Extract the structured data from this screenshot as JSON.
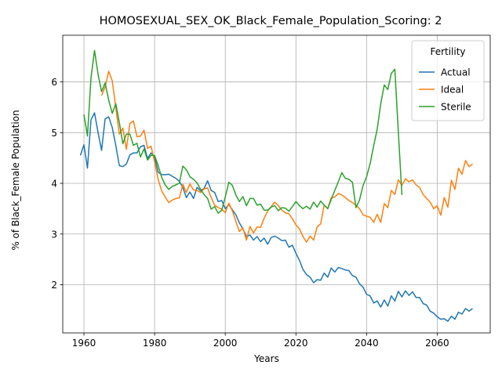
{
  "chart_data": {
    "type": "line",
    "title": "HOMOSEXUAL_SEX_OK_Black_Female_Population_Scoring: 2",
    "xlabel": "Years",
    "ylabel": "% of Black_Female Population",
    "xlim": [
      1954,
      2075
    ],
    "ylim": [
      1.05,
      6.92
    ],
    "xticks": [
      1960,
      1980,
      2000,
      2020,
      2040,
      2060
    ],
    "yticks": [
      2,
      3,
      4,
      5,
      6
    ],
    "grid": true,
    "legend": {
      "title": "Fertility",
      "placement": "top-right"
    },
    "series": [
      {
        "name": "Actual",
        "color": "#1f77b4",
        "points": [
          [
            1959,
            4.55
          ],
          [
            1960,
            4.76
          ],
          [
            1961,
            4.3
          ],
          [
            1962,
            5.25
          ],
          [
            1963,
            5.39
          ],
          [
            1964,
            5.0
          ],
          [
            1965,
            4.65
          ],
          [
            1966,
            5.27
          ],
          [
            1967,
            5.31
          ],
          [
            1968,
            5.1
          ],
          [
            1969,
            4.75
          ],
          [
            1970,
            4.35
          ],
          [
            1971,
            4.33
          ],
          [
            1972,
            4.38
          ],
          [
            1973,
            4.56
          ],
          [
            1974,
            4.6
          ],
          [
            1975,
            4.6
          ],
          [
            1976,
            4.72
          ],
          [
            1977,
            4.75
          ],
          [
            1978,
            4.49
          ],
          [
            1979,
            4.6
          ],
          [
            1980,
            4.52
          ],
          [
            1981,
            4.22
          ],
          [
            1982,
            4.17
          ],
          [
            1983,
            4.17
          ],
          [
            1984,
            4.18
          ],
          [
            1985,
            4.14
          ],
          [
            1986,
            4.1
          ],
          [
            1987,
            4.04
          ],
          [
            1988,
            3.92
          ],
          [
            1989,
            3.72
          ],
          [
            1990,
            3.83
          ],
          [
            1991,
            3.7
          ],
          [
            1992,
            3.92
          ],
          [
            1993,
            3.85
          ],
          [
            1994,
            3.9
          ],
          [
            1995,
            4.05
          ],
          [
            1996,
            3.86
          ],
          [
            1997,
            3.82
          ],
          [
            1998,
            3.64
          ],
          [
            1999,
            3.66
          ],
          [
            2000,
            3.5
          ],
          [
            2001,
            3.58
          ],
          [
            2002,
            3.48
          ],
          [
            2003,
            3.38
          ],
          [
            2004,
            3.22
          ],
          [
            2005,
            3.1
          ],
          [
            2006,
            2.95
          ],
          [
            2007,
            2.98
          ],
          [
            2008,
            2.88
          ],
          [
            2009,
            2.95
          ],
          [
            2010,
            2.85
          ],
          [
            2011,
            2.92
          ],
          [
            2012,
            2.8
          ],
          [
            2013,
            2.93
          ],
          [
            2014,
            2.96
          ],
          [
            2015,
            2.92
          ],
          [
            2016,
            2.87
          ],
          [
            2017,
            2.88
          ],
          [
            2018,
            2.74
          ],
          [
            2019,
            2.78
          ],
          [
            2020,
            2.62
          ],
          [
            2021,
            2.48
          ],
          [
            2022,
            2.3
          ],
          [
            2023,
            2.2
          ],
          [
            2024,
            2.15
          ],
          [
            2025,
            2.04
          ],
          [
            2026,
            2.1
          ],
          [
            2027,
            2.09
          ],
          [
            2028,
            2.23
          ],
          [
            2029,
            2.15
          ],
          [
            2030,
            2.33
          ],
          [
            2031,
            2.25
          ],
          [
            2032,
            2.34
          ],
          [
            2033,
            2.32
          ],
          [
            2034,
            2.29
          ],
          [
            2035,
            2.28
          ],
          [
            2036,
            2.18
          ],
          [
            2037,
            2.15
          ],
          [
            2038,
            2.02
          ],
          [
            2039,
            1.95
          ],
          [
            2040,
            1.81
          ],
          [
            2041,
            1.78
          ],
          [
            2042,
            1.64
          ],
          [
            2043,
            1.68
          ],
          [
            2044,
            1.56
          ],
          [
            2045,
            1.7
          ],
          [
            2046,
            1.58
          ],
          [
            2047,
            1.78
          ],
          [
            2048,
            1.68
          ],
          [
            2049,
            1.87
          ],
          [
            2050,
            1.76
          ],
          [
            2051,
            1.88
          ],
          [
            2052,
            1.79
          ],
          [
            2053,
            1.86
          ],
          [
            2054,
            1.75
          ],
          [
            2055,
            1.75
          ],
          [
            2056,
            1.63
          ],
          [
            2057,
            1.6
          ],
          [
            2058,
            1.48
          ],
          [
            2059,
            1.44
          ],
          [
            2060,
            1.37
          ],
          [
            2061,
            1.32
          ],
          [
            2062,
            1.33
          ],
          [
            2063,
            1.28
          ],
          [
            2064,
            1.38
          ],
          [
            2065,
            1.32
          ],
          [
            2066,
            1.46
          ],
          [
            2067,
            1.42
          ],
          [
            2068,
            1.53
          ],
          [
            2069,
            1.48
          ],
          [
            2070,
            1.53
          ]
        ]
      },
      {
        "name": "Ideal",
        "color": "#ff7f0e",
        "points": [
          [
            1965,
            5.73
          ],
          [
            1966,
            5.9
          ],
          [
            1967,
            6.21
          ],
          [
            1968,
            6.02
          ],
          [
            1969,
            5.5
          ],
          [
            1970,
            4.97
          ],
          [
            1971,
            5.09
          ],
          [
            1972,
            4.67
          ],
          [
            1973,
            5.18
          ],
          [
            1974,
            5.23
          ],
          [
            1975,
            4.92
          ],
          [
            1976,
            4.93
          ],
          [
            1977,
            5.05
          ],
          [
            1978,
            4.69
          ],
          [
            1979,
            4.73
          ],
          [
            1980,
            4.42
          ],
          [
            1981,
            4.08
          ],
          [
            1982,
            3.85
          ],
          [
            1983,
            3.73
          ],
          [
            1984,
            3.62
          ],
          [
            1985,
            3.67
          ],
          [
            1986,
            3.7
          ],
          [
            1987,
            3.71
          ],
          [
            1988,
            3.98
          ],
          [
            1989,
            3.82
          ],
          [
            1990,
            3.99
          ],
          [
            1991,
            3.87
          ],
          [
            1992,
            3.86
          ],
          [
            1993,
            3.82
          ],
          [
            1994,
            3.89
          ],
          [
            1995,
            3.91
          ],
          [
            1996,
            3.72
          ],
          [
            1997,
            3.57
          ],
          [
            1998,
            3.52
          ],
          [
            1999,
            3.49
          ],
          [
            2000,
            3.42
          ],
          [
            2001,
            3.61
          ],
          [
            2002,
            3.46
          ],
          [
            2003,
            3.25
          ],
          [
            2004,
            3.05
          ],
          [
            2005,
            3.12
          ],
          [
            2006,
            2.88
          ],
          [
            2007,
            3.15
          ],
          [
            2008,
            3.02
          ],
          [
            2009,
            3.14
          ],
          [
            2010,
            3.13
          ],
          [
            2011,
            3.31
          ],
          [
            2012,
            3.45
          ],
          [
            2013,
            3.54
          ],
          [
            2014,
            3.63
          ],
          [
            2015,
            3.56
          ],
          [
            2016,
            3.47
          ],
          [
            2017,
            3.42
          ],
          [
            2018,
            3.4
          ],
          [
            2019,
            3.3
          ],
          [
            2020,
            3.18
          ],
          [
            2021,
            3.1
          ],
          [
            2022,
            2.95
          ],
          [
            2023,
            2.84
          ],
          [
            2024,
            2.96
          ],
          [
            2025,
            2.88
          ],
          [
            2026,
            3.14
          ],
          [
            2027,
            3.2
          ],
          [
            2028,
            3.57
          ],
          [
            2029,
            3.5
          ],
          [
            2030,
            3.72
          ],
          [
            2031,
            3.73
          ],
          [
            2032,
            3.8
          ],
          [
            2033,
            3.77
          ],
          [
            2034,
            3.72
          ],
          [
            2035,
            3.66
          ],
          [
            2036,
            3.62
          ],
          [
            2037,
            3.57
          ],
          [
            2038,
            3.5
          ],
          [
            2039,
            3.38
          ],
          [
            2040,
            3.35
          ],
          [
            2041,
            3.33
          ],
          [
            2042,
            3.23
          ],
          [
            2043,
            3.39
          ],
          [
            2044,
            3.23
          ],
          [
            2045,
            3.6
          ],
          [
            2046,
            3.52
          ],
          [
            2047,
            3.86
          ],
          [
            2048,
            3.78
          ],
          [
            2049,
            4.07
          ],
          [
            2050,
            3.96
          ],
          [
            2051,
            4.09
          ],
          [
            2052,
            4.03
          ],
          [
            2053,
            4.07
          ],
          [
            2054,
            3.97
          ],
          [
            2055,
            3.92
          ],
          [
            2056,
            3.78
          ],
          [
            2057,
            3.7
          ],
          [
            2058,
            3.63
          ],
          [
            2059,
            3.5
          ],
          [
            2060,
            3.56
          ],
          [
            2061,
            3.37
          ],
          [
            2062,
            3.72
          ],
          [
            2063,
            3.53
          ],
          [
            2064,
            4.06
          ],
          [
            2065,
            3.88
          ],
          [
            2066,
            4.3
          ],
          [
            2067,
            4.18
          ],
          [
            2068,
            4.45
          ],
          [
            2069,
            4.33
          ],
          [
            2070,
            4.38
          ]
        ]
      },
      {
        "name": "Sterile",
        "color": "#2ca02c",
        "points": [
          [
            1960,
            5.36
          ],
          [
            1961,
            4.93
          ],
          [
            1962,
            6.08
          ],
          [
            1963,
            6.62
          ],
          [
            1964,
            6.15
          ],
          [
            1965,
            5.81
          ],
          [
            1966,
            5.98
          ],
          [
            1967,
            5.64
          ],
          [
            1968,
            5.38
          ],
          [
            1969,
            5.57
          ],
          [
            1970,
            5.2
          ],
          [
            1971,
            4.78
          ],
          [
            1972,
            4.97
          ],
          [
            1973,
            4.97
          ],
          [
            1974,
            4.75
          ],
          [
            1975,
            4.79
          ],
          [
            1976,
            4.52
          ],
          [
            1977,
            4.68
          ],
          [
            1978,
            4.46
          ],
          [
            1979,
            4.55
          ],
          [
            1980,
            4.55
          ],
          [
            1981,
            4.35
          ],
          [
            1982,
            4.12
          ],
          [
            1983,
            3.97
          ],
          [
            1984,
            3.88
          ],
          [
            1985,
            3.94
          ],
          [
            1986,
            3.97
          ],
          [
            1987,
            4.0
          ],
          [
            1988,
            4.34
          ],
          [
            1989,
            4.27
          ],
          [
            1990,
            4.13
          ],
          [
            1991,
            4.08
          ],
          [
            1992,
            4.01
          ],
          [
            1993,
            3.88
          ],
          [
            1994,
            3.78
          ],
          [
            1995,
            3.7
          ],
          [
            1996,
            3.49
          ],
          [
            1997,
            3.54
          ],
          [
            1998,
            3.41
          ],
          [
            1999,
            3.47
          ],
          [
            2000,
            3.73
          ],
          [
            2001,
            4.02
          ],
          [
            2002,
            3.96
          ],
          [
            2003,
            3.77
          ],
          [
            2004,
            3.64
          ],
          [
            2005,
            3.74
          ],
          [
            2006,
            3.56
          ],
          [
            2007,
            3.7
          ],
          [
            2008,
            3.7
          ],
          [
            2009,
            3.57
          ],
          [
            2010,
            3.59
          ],
          [
            2011,
            3.47
          ],
          [
            2012,
            3.47
          ],
          [
            2013,
            3.53
          ],
          [
            2014,
            3.56
          ],
          [
            2015,
            3.46
          ],
          [
            2016,
            3.52
          ],
          [
            2017,
            3.51
          ],
          [
            2018,
            3.45
          ],
          [
            2019,
            3.54
          ],
          [
            2020,
            3.64
          ],
          [
            2021,
            3.56
          ],
          [
            2022,
            3.5
          ],
          [
            2023,
            3.55
          ],
          [
            2024,
            3.49
          ],
          [
            2025,
            3.63
          ],
          [
            2026,
            3.53
          ],
          [
            2027,
            3.65
          ],
          [
            2028,
            3.57
          ],
          [
            2029,
            3.5
          ],
          [
            2030,
            3.68
          ],
          [
            2031,
            3.86
          ],
          [
            2032,
            4.03
          ],
          [
            2033,
            4.21
          ],
          [
            2034,
            4.1
          ],
          [
            2035,
            4.08
          ],
          [
            2036,
            4.02
          ],
          [
            2037,
            3.52
          ],
          [
            2038,
            3.67
          ],
          [
            2039,
            3.96
          ],
          [
            2040,
            4.13
          ],
          [
            2041,
            4.39
          ],
          [
            2042,
            4.74
          ],
          [
            2043,
            5.07
          ],
          [
            2044,
            5.57
          ],
          [
            2045,
            5.94
          ],
          [
            2046,
            5.85
          ],
          [
            2047,
            6.17
          ],
          [
            2048,
            6.25
          ],
          [
            2049,
            5.0
          ],
          [
            2050,
            3.77
          ]
        ]
      }
    ]
  }
}
